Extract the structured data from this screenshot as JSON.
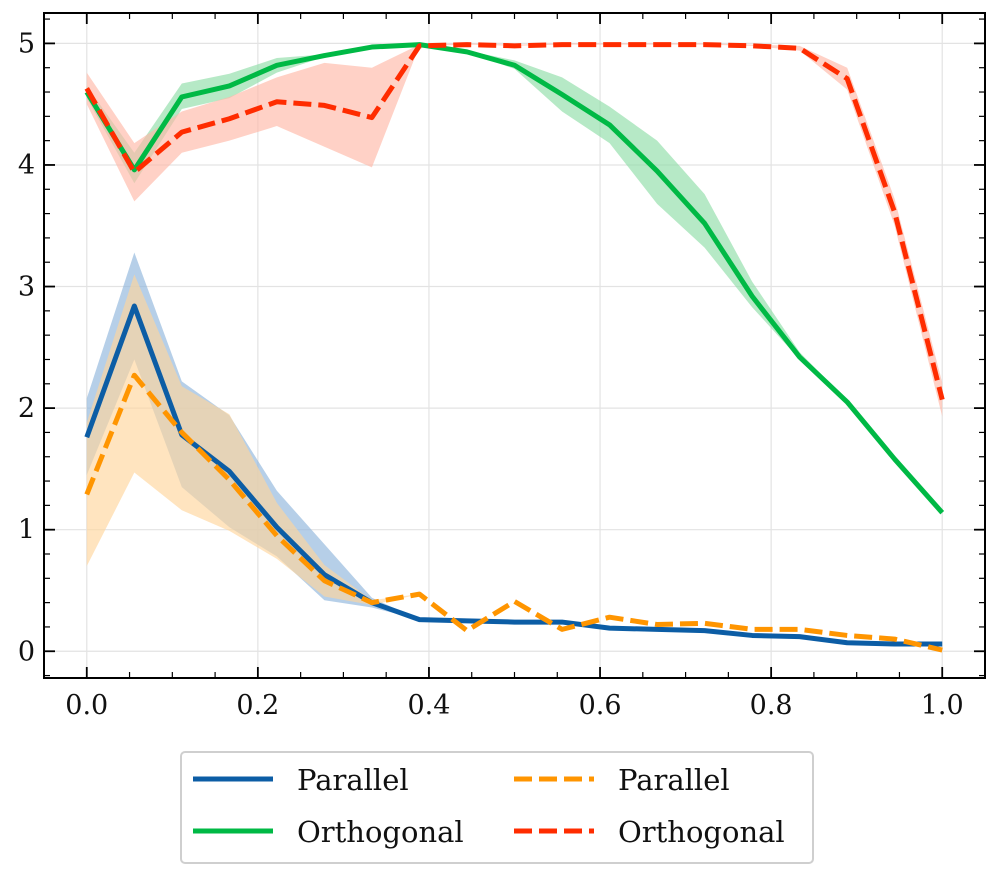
{
  "chart_data": {
    "type": "line",
    "title": "",
    "xlabel": "",
    "ylabel": "",
    "xlim": [
      -0.05,
      1.05
    ],
    "ylim": [
      -0.22,
      5.25
    ],
    "xticks": [
      0.0,
      0.2,
      0.4,
      0.6,
      0.8,
      1.0
    ],
    "xtick_labels": [
      "0.0",
      "0.2",
      "0.4",
      "0.6",
      "0.8",
      "1.0"
    ],
    "yticks": [
      0,
      1,
      2,
      3,
      4,
      5
    ],
    "ytick_labels": [
      "0",
      "1",
      "2",
      "3",
      "4",
      "5"
    ],
    "grid": true,
    "legend_position": "below",
    "x": [
      0.0,
      0.0556,
      0.1111,
      0.1667,
      0.2222,
      0.2778,
      0.3333,
      0.3889,
      0.4444,
      0.5,
      0.5556,
      0.6111,
      0.6667,
      0.7222,
      0.7778,
      0.8333,
      0.8889,
      0.9444,
      1.0
    ],
    "series": [
      {
        "name": "Parallel",
        "style": "solid",
        "color": "#0C5DA5",
        "band_color": "#8FB5DC",
        "values": [
          1.76,
          2.84,
          1.78,
          1.48,
          1.02,
          0.63,
          0.4,
          0.26,
          0.25,
          0.24,
          0.24,
          0.19,
          0.18,
          0.17,
          0.13,
          0.12,
          0.07,
          0.06,
          0.06
        ],
        "lower": [
          1.45,
          2.4,
          1.35,
          1.02,
          0.78,
          0.42,
          0.36,
          0.26,
          0.25,
          0.24,
          0.24,
          0.19,
          0.18,
          0.17,
          0.13,
          0.12,
          0.07,
          0.06,
          0.06
        ],
        "upper": [
          2.08,
          3.28,
          2.22,
          1.94,
          1.32,
          0.88,
          0.44,
          0.26,
          0.25,
          0.24,
          0.24,
          0.19,
          0.18,
          0.17,
          0.13,
          0.12,
          0.07,
          0.06,
          0.06
        ]
      },
      {
        "name": "Orthogonal",
        "style": "solid",
        "color": "#00B945",
        "band_color": "#8FDDA8",
        "values": [
          4.6,
          3.96,
          4.56,
          4.65,
          4.82,
          4.9,
          4.97,
          4.99,
          4.93,
          4.82,
          4.58,
          4.33,
          3.95,
          3.52,
          2.92,
          2.42,
          2.05,
          1.58,
          1.14
        ],
        "lower": [
          4.55,
          3.85,
          4.46,
          4.55,
          4.76,
          4.89,
          4.97,
          4.99,
          4.93,
          4.79,
          4.44,
          4.18,
          3.68,
          3.32,
          2.83,
          2.4,
          2.04,
          1.58,
          1.14
        ],
        "upper": [
          4.65,
          4.1,
          4.67,
          4.75,
          4.88,
          4.91,
          4.97,
          4.99,
          4.94,
          4.86,
          4.72,
          4.48,
          4.2,
          3.76,
          3.04,
          2.46,
          2.06,
          1.59,
          1.15
        ]
      },
      {
        "name": "Parallel",
        "style": "dashed",
        "color": "#FF9500",
        "band_color": "#FFD59C",
        "values": [
          1.29,
          2.27,
          1.8,
          1.41,
          0.95,
          0.58,
          0.4,
          0.47,
          0.17,
          0.41,
          0.18,
          0.28,
          0.22,
          0.23,
          0.18,
          0.18,
          0.13,
          0.1,
          0.01
        ],
        "lower": [
          0.7,
          1.47,
          1.16,
          0.99,
          0.76,
          0.45,
          0.38,
          0.47,
          0.17,
          0.41,
          0.18,
          0.28,
          0.22,
          0.23,
          0.18,
          0.18,
          0.13,
          0.1,
          0.01
        ],
        "upper": [
          1.88,
          3.1,
          2.18,
          1.95,
          1.22,
          0.71,
          0.42,
          0.47,
          0.17,
          0.41,
          0.18,
          0.28,
          0.22,
          0.23,
          0.18,
          0.18,
          0.13,
          0.1,
          0.01
        ]
      },
      {
        "name": "Orthogonal",
        "style": "dashed",
        "color": "#FF2C00",
        "band_color": "#FFB8A8",
        "values": [
          4.63,
          3.94,
          4.27,
          4.38,
          4.52,
          4.49,
          4.39,
          4.98,
          4.99,
          4.98,
          4.99,
          4.99,
          4.99,
          4.99,
          4.98,
          4.96,
          4.71,
          3.61,
          2.07
        ],
        "lower": [
          4.5,
          3.7,
          4.1,
          4.2,
          4.32,
          4.15,
          3.98,
          4.98,
          4.99,
          4.98,
          4.99,
          4.99,
          4.99,
          4.99,
          4.98,
          4.94,
          4.62,
          3.5,
          1.93
        ],
        "upper": [
          4.76,
          4.18,
          4.44,
          4.56,
          4.72,
          4.84,
          4.8,
          4.99,
          5.0,
          4.99,
          5.0,
          5.0,
          5.0,
          5.0,
          4.99,
          4.98,
          4.8,
          3.72,
          2.21
        ]
      }
    ]
  }
}
